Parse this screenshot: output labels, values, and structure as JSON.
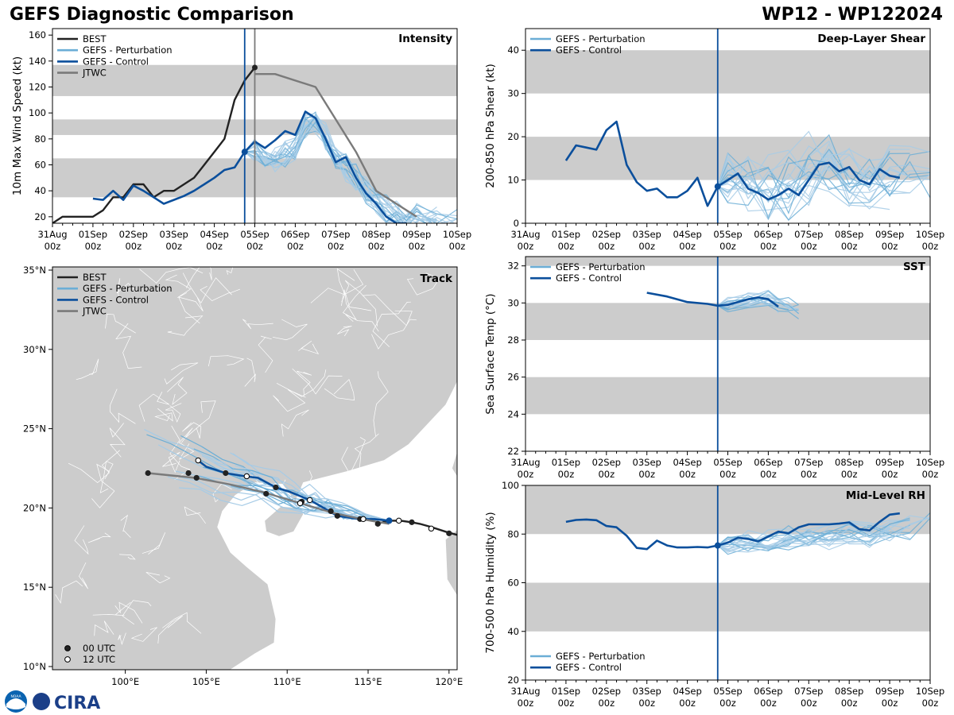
{
  "header": {
    "title": "GEFS Diagnostic Comparison",
    "storm": "WP12 - WP122024"
  },
  "colors": {
    "best": "#222222",
    "pert": "#6baed6",
    "pert_light": "#a6cbe6",
    "control": "#0b4f9c",
    "jtwc": "#7a7a7a",
    "band": "#cccccc",
    "land": "#cccccc",
    "marker": "#0b4f9c"
  },
  "time_axis": {
    "ticks": [
      "31Aug\n00z",
      "01Sep\n00z",
      "02Sep\n00z",
      "03Sep\n00z",
      "04Sep\n00z",
      "05Sep\n00z",
      "06Sep\n00z",
      "07Sep\n00z",
      "08Sep\n00z",
      "09Sep\n00z",
      "10Sep\n00z"
    ]
  },
  "logo": {
    "noaa": "NOAA",
    "cira": "CIRA"
  },
  "track_legend_markers": [
    {
      "label": "00 UTC",
      "fill": "#222222"
    },
    {
      "label": "12 UTC",
      "fill": "#ffffff"
    }
  ],
  "chart_data": [
    {
      "id": "intensity",
      "type": "line",
      "title": "Intensity",
      "ylabel": "10m Max Wind Speed (kt)",
      "xlim": [
        0,
        10
      ],
      "ylim": [
        15,
        165
      ],
      "yticks": [
        20,
        40,
        60,
        80,
        100,
        120,
        140,
        160
      ],
      "bands": [
        [
          35,
          65
        ],
        [
          83,
          95
        ],
        [
          113,
          137
        ]
      ],
      "vlines": [
        {
          "x": 4.75,
          "color": "control"
        },
        {
          "x": 5.0,
          "color": "jtwc"
        }
      ],
      "legend": [
        "BEST",
        "GEFS - Perturbation",
        "GEFS - Control",
        "JTWC"
      ],
      "series": [
        {
          "name": "BEST",
          "style": "best",
          "x": [
            0,
            0.25,
            0.5,
            0.75,
            1,
            1.25,
            1.5,
            1.75,
            2,
            2.25,
            2.5,
            2.75,
            3,
            3.25,
            3.5,
            3.75,
            4,
            4.25,
            4.5,
            4.75,
            5
          ],
          "y": [
            15,
            20,
            20,
            20,
            20,
            25,
            35,
            35,
            45,
            45,
            35,
            40,
            40,
            45,
            50,
            60,
            70,
            80,
            110,
            125,
            135
          ]
        },
        {
          "name": "GEFS - Control",
          "style": "control",
          "x": [
            1,
            1.25,
            1.5,
            1.75,
            2,
            2.25,
            2.5,
            2.75,
            3,
            3.25,
            3.5,
            3.75,
            4,
            4.25,
            4.5,
            4.75,
            5,
            5.25,
            5.5,
            5.75,
            6,
            6.25,
            6.5,
            6.75,
            7,
            7.25,
            7.5,
            7.75,
            8,
            8.25,
            8.5,
            8.75
          ],
          "y": [
            34,
            33,
            40,
            33,
            44,
            40,
            35,
            30,
            33,
            36,
            40,
            45,
            50,
            56,
            58,
            70,
            78,
            73,
            79,
            86,
            83,
            101,
            96,
            80,
            62,
            66,
            50,
            38,
            30,
            20,
            15,
            15
          ]
        },
        {
          "name": "JTWC",
          "style": "jtwc",
          "x": [
            5,
            5.5,
            6.5,
            7,
            7.5,
            8,
            8.5,
            9
          ],
          "y": [
            130,
            130,
            120,
            95,
            70,
            40,
            30,
            20
          ]
        }
      ],
      "ensemble": {
        "base_x": [
          4.75,
          5,
          5.25,
          5.5,
          5.75,
          6,
          6.25,
          6.5,
          6.75,
          7,
          7.25,
          7.5,
          7.75,
          8,
          8.25,
          8.5,
          8.75,
          9,
          9.5,
          10
        ],
        "base_y": [
          70,
          72,
          64,
          65,
          68,
          72,
          90,
          95,
          80,
          65,
          58,
          50,
          40,
          32,
          25,
          20,
          18,
          20,
          18,
          18
        ],
        "count": 20,
        "spread": 9,
        "seed": 7
      },
      "marker": {
        "x": 4.75,
        "y": 70
      },
      "marker_best": {
        "x": 5.0,
        "y": 135
      }
    },
    {
      "id": "shear",
      "type": "line",
      "title": "Deep-Layer Shear",
      "ylabel": "200-850 hPa Shear (kt)",
      "xlim": [
        0,
        10
      ],
      "ylim": [
        0,
        45
      ],
      "yticks": [
        0,
        10,
        20,
        30,
        40
      ],
      "bands": [
        [
          10,
          20
        ],
        [
          30,
          40
        ]
      ],
      "vlines": [
        {
          "x": 4.75,
          "color": "control"
        }
      ],
      "legend": [
        "GEFS - Perturbation",
        "GEFS - Control"
      ],
      "series": [
        {
          "name": "GEFS - Control",
          "style": "control",
          "x": [
            1,
            1.25,
            1.5,
            1.75,
            2,
            2.25,
            2.5,
            2.75,
            3,
            3.25,
            3.5,
            3.75,
            4,
            4.25,
            4.5,
            4.75,
            5,
            5.25,
            5.5,
            5.75,
            6,
            6.25,
            6.5,
            6.75,
            7,
            7.25,
            7.5,
            7.75,
            8,
            8.25,
            8.5,
            8.75,
            9,
            9.25
          ],
          "y": [
            14.5,
            18,
            17.5,
            17,
            21.5,
            23.5,
            13.5,
            9.5,
            7.5,
            8,
            6,
            6,
            7.5,
            10.5,
            4,
            8.5,
            10,
            11.5,
            8,
            7,
            5.5,
            6.5,
            8,
            6.5,
            10,
            13.5,
            14,
            12,
            13,
            10,
            9,
            12.5,
            11,
            10.5
          ]
        }
      ],
      "ensemble": {
        "base_x": [
          4.75,
          5,
          5.5,
          6,
          6.5,
          7,
          7.5,
          8,
          8.5,
          9,
          9.5,
          10
        ],
        "base_y": [
          8.5,
          11,
          10,
          8,
          9,
          12,
          14,
          12,
          11,
          11,
          10,
          10
        ],
        "count": 20,
        "spread": 6,
        "seed": 13
      },
      "marker": {
        "x": 4.75,
        "y": 8.5
      }
    },
    {
      "id": "sst",
      "type": "line",
      "title": "SST",
      "ylabel": "Sea Surface Temp (°C)",
      "xlim": [
        0,
        10
      ],
      "ylim": [
        22,
        32.5
      ],
      "yticks": [
        22,
        24,
        26,
        28,
        30,
        32
      ],
      "bands": [
        [
          24,
          26
        ],
        [
          28,
          30
        ],
        [
          32,
          32.5
        ]
      ],
      "vlines": [
        {
          "x": 4.75,
          "color": "control"
        }
      ],
      "legend": [
        "GEFS - Perturbation",
        "GEFS - Control"
      ],
      "series": [
        {
          "name": "GEFS - Control",
          "style": "control",
          "x": [
            3,
            3.5,
            4,
            4.5,
            4.75,
            5,
            5.5,
            5.75,
            6,
            6.25
          ],
          "y": [
            30.55,
            30.35,
            30.05,
            29.95,
            29.85,
            29.9,
            30.2,
            30.3,
            30.2,
            29.8
          ]
        }
      ],
      "ensemble": {
        "base_x": [
          4.75,
          5,
          5.5,
          6,
          6.25,
          6.5,
          6.75
        ],
        "base_y": [
          29.85,
          29.9,
          30.1,
          30.2,
          30.0,
          29.8,
          29.5
        ],
        "count": 16,
        "spread": 0.35,
        "seed": 21
      }
    },
    {
      "id": "rh",
      "type": "line",
      "title": "Mid-Level RH",
      "ylabel": "700-500 hPa Humidity (%)",
      "xlim": [
        0,
        10
      ],
      "ylim": [
        20,
        100
      ],
      "yticks": [
        20,
        40,
        60,
        80,
        100
      ],
      "bands": [
        [
          40,
          60
        ],
        [
          80,
          100
        ]
      ],
      "vlines": [
        {
          "x": 4.75,
          "color": "control"
        }
      ],
      "legend": [
        "GEFS - Perturbation",
        "GEFS - Control"
      ],
      "series": [
        {
          "name": "GEFS - Control",
          "style": "control",
          "x": [
            1,
            1.25,
            1.5,
            1.75,
            2,
            2.25,
            2.5,
            2.75,
            3,
            3.25,
            3.5,
            3.75,
            4,
            4.25,
            4.5,
            4.75,
            5,
            5.25,
            5.5,
            5.75,
            6,
            6.25,
            6.5,
            6.75,
            7,
            7.25,
            7.5,
            7.75,
            8,
            8.25,
            8.5,
            8.75,
            9,
            9.25
          ],
          "y": [
            85,
            85.8,
            86,
            85.7,
            83.3,
            82.8,
            79.3,
            74.3,
            73.8,
            77.3,
            75.3,
            74.5,
            74.5,
            74.7,
            74.5,
            75.3,
            76.5,
            78.5,
            78,
            77,
            79,
            81,
            80.3,
            82.8,
            84,
            84,
            84,
            84.3,
            84.8,
            82,
            81.5,
            85,
            88,
            88.5
          ]
        }
      ],
      "ensemble": {
        "base_x": [
          4.75,
          5,
          5.5,
          6,
          6.5,
          7,
          7.5,
          8,
          8.5,
          9,
          9.5,
          10
        ],
        "base_y": [
          75.3,
          76,
          77,
          77,
          78,
          79,
          79,
          80,
          80,
          81,
          83,
          88
        ],
        "count": 20,
        "spread": 4,
        "seed": 33
      },
      "marker": {
        "x": 4.75,
        "y": 75.3
      }
    },
    {
      "id": "track",
      "type": "line",
      "title": "Track",
      "xlim": [
        95.5,
        120.5
      ],
      "ylim": [
        9.8,
        35.2
      ],
      "xticks": [
        100,
        105,
        110,
        115,
        120
      ],
      "xtick_labels": [
        "100°E",
        "105°E",
        "110°E",
        "115°E",
        "120°E"
      ],
      "yticks": [
        10,
        15,
        20,
        25,
        30,
        35
      ],
      "ytick_labels": [
        "10°N",
        "15°N",
        "20°N",
        "25°N",
        "30°N",
        "35°N"
      ],
      "legend": [
        "BEST",
        "GEFS - Perturbation",
        "GEFS - Control",
        "JTWC"
      ],
      "series": [
        {
          "name": "BEST",
          "style": "best",
          "lon": [
            120.5,
            119.8,
            118.9,
            118.2,
            117.7,
            117.0,
            116.4,
            115.9,
            115.6
          ],
          "lat": [
            18.3,
            18.5,
            18.8,
            19.0,
            19.1,
            19.2,
            19.2,
            19.1,
            19.0
          ]
        },
        {
          "name": "GEFS - Control",
          "style": "control",
          "lon": [
            116.3,
            115.4,
            114.5,
            113.1,
            112.6,
            111.4,
            110.2,
            109.3,
            108.2,
            107.4,
            106.2,
            105.0,
            104.5
          ],
          "lat": [
            19.2,
            19.3,
            19.3,
            19.5,
            19.8,
            20.5,
            21.0,
            21.3,
            21.9,
            22.0,
            22.2,
            22.6,
            23.0
          ]
        },
        {
          "name": "JTWC",
          "style": "jtwc",
          "lon": [
            116.3,
            114.6,
            112.8,
            110.8,
            108.5,
            106.4,
            104.3,
            101.4
          ],
          "lat": [
            19.0,
            19.3,
            19.7,
            20.3,
            21.0,
            21.5,
            21.9,
            22.2
          ]
        }
      ],
      "best_points_00z": [
        [
          120.0,
          18.4
        ],
        [
          117.7,
          19.1
        ],
        [
          115.6,
          19.0
        ],
        [
          114.5,
          19.3
        ],
        [
          113.1,
          19.5
        ],
        [
          112.7,
          19.8
        ],
        [
          110.9,
          20.4
        ],
        [
          109.3,
          21.3
        ],
        [
          108.7,
          20.9
        ],
        [
          106.2,
          22.2
        ],
        [
          104.4,
          21.9
        ],
        [
          103.9,
          22.2
        ],
        [
          101.4,
          22.2
        ]
      ],
      "best_points_12z": [
        [
          118.9,
          18.7
        ],
        [
          116.9,
          19.2
        ],
        [
          114.7,
          19.3
        ],
        [
          111.4,
          20.5
        ],
        [
          110.8,
          20.3
        ],
        [
          107.5,
          22.0
        ],
        [
          104.5,
          23.0
        ]
      ],
      "control_marker": [
        116.3,
        19.2
      ],
      "ensemble": {
        "end_lon": 116.3,
        "end_lat": 19.2,
        "count": 20,
        "spread": 1.2,
        "seed": 55
      },
      "markers_legend": [
        "00 UTC",
        "12 UTC"
      ]
    }
  ]
}
